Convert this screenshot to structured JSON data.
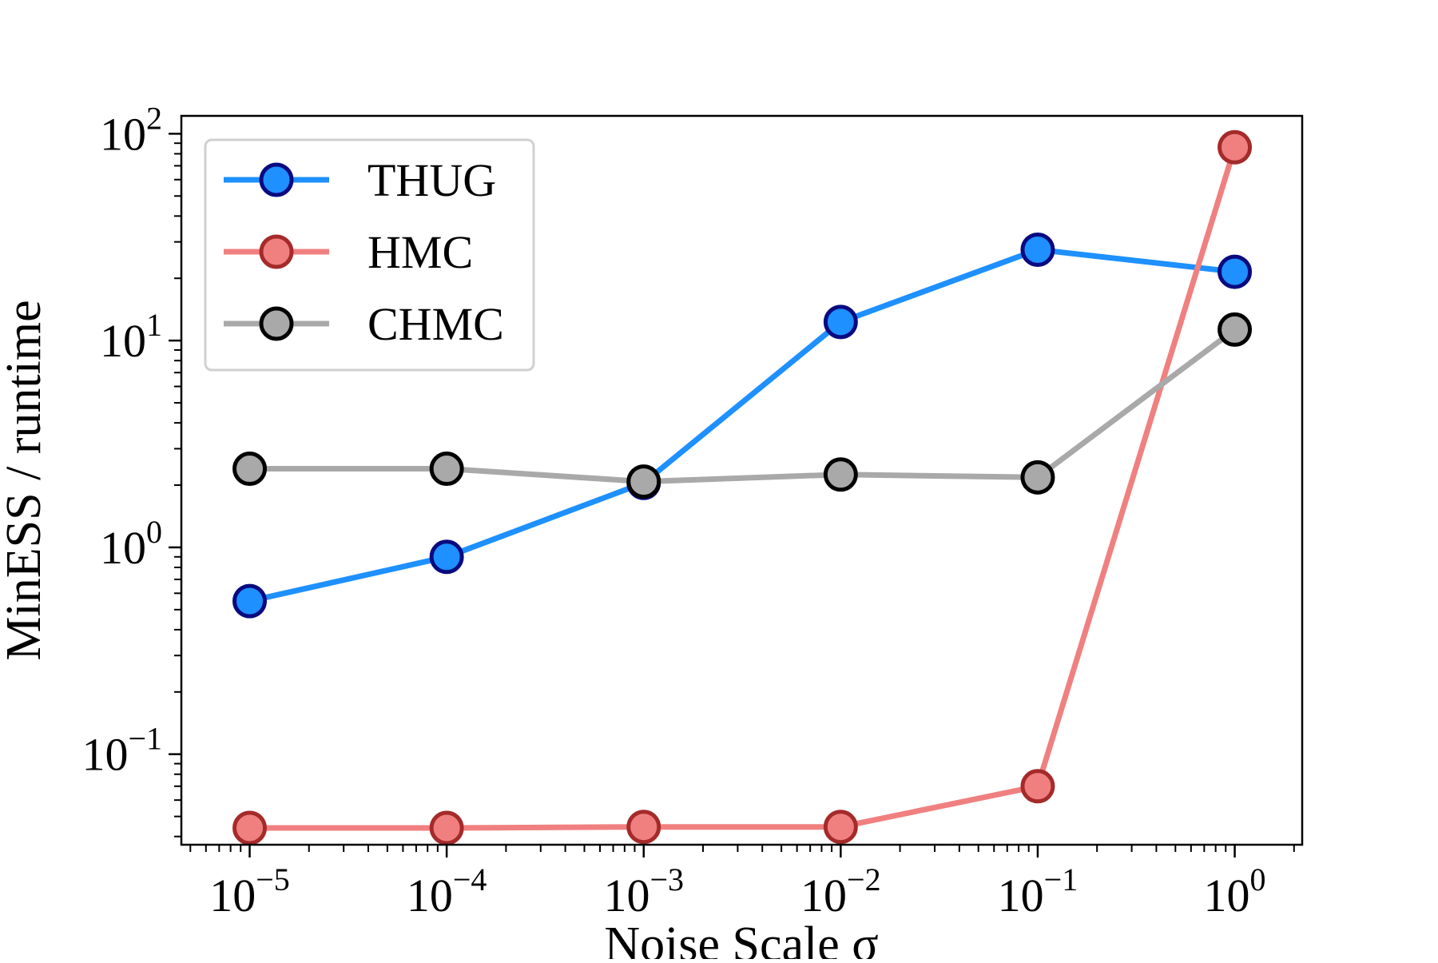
{
  "chart_data": {
    "type": "line",
    "title": "",
    "xlabel": "Noise Scale σ",
    "ylabel": "MinESS / runtime",
    "xscale": "log",
    "yscale": "log",
    "x": [
      1e-05,
      0.0001,
      0.001,
      0.01,
      0.1,
      1
    ],
    "x_tick_values": [
      1e-05,
      0.0001,
      0.001,
      0.01,
      0.1,
      1
    ],
    "x_tick_labels": [
      {
        "base": "10",
        "exp": "−5"
      },
      {
        "base": "10",
        "exp": "−4"
      },
      {
        "base": "10",
        "exp": "−3"
      },
      {
        "base": "10",
        "exp": "−2"
      },
      {
        "base": "10",
        "exp": "−1"
      },
      {
        "base": "10",
        "exp": "0"
      }
    ],
    "y_tick_values": [
      0.1,
      1,
      10,
      100
    ],
    "y_tick_labels": [
      {
        "base": "10",
        "exp": "−1"
      },
      {
        "base": "10",
        "exp": "0"
      },
      {
        "base": "10",
        "exp": "1"
      },
      {
        "base": "10",
        "exp": "2"
      }
    ],
    "xlim": [
      4.5e-06,
      2.2
    ],
    "ylim": [
      0.0365,
      122
    ],
    "grid": false,
    "legend_position": "top-left",
    "series": [
      {
        "name": "THUG",
        "color": "#1e90ff",
        "edge": "#0a0a80",
        "values": [
          0.55,
          0.9,
          2.05,
          12.3,
          27.5,
          21.5
        ]
      },
      {
        "name": "HMC",
        "color": "#f08080",
        "edge": "#a52a2a",
        "values": [
          0.044,
          0.044,
          0.0445,
          0.0445,
          0.07,
          86
        ]
      },
      {
        "name": "CHMC",
        "color": "#a9a9a9",
        "edge": "#000000",
        "values": [
          2.4,
          2.4,
          2.08,
          2.25,
          2.18,
          11.3
        ]
      }
    ]
  }
}
